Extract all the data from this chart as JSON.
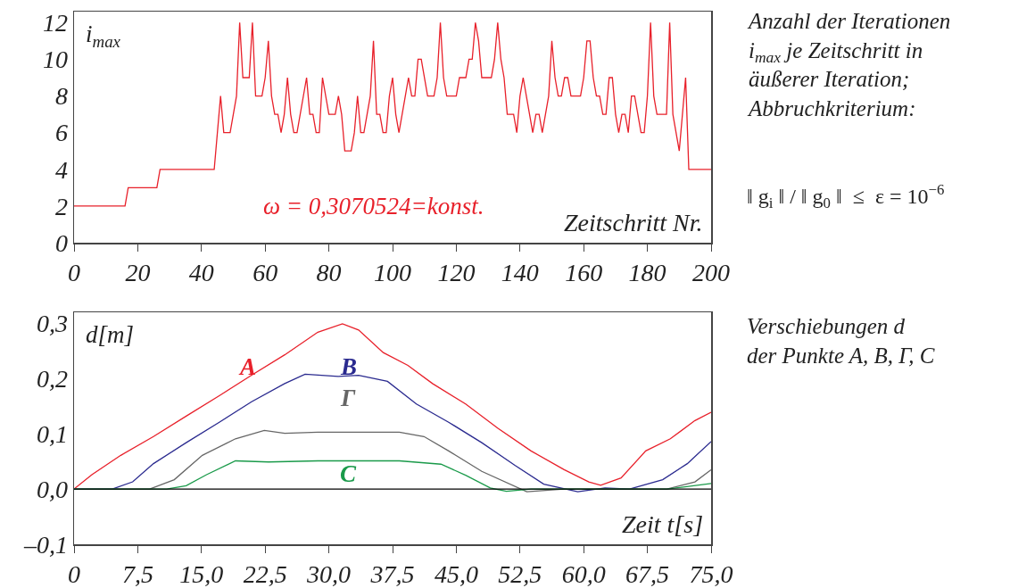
{
  "chart_data": [
    {
      "type": "line",
      "xlabel": "Zeitschritt Nr.",
      "ylabel": "i$_{max}$",
      "color": "#e8202a",
      "grid": false,
      "legend": false,
      "marker": "none",
      "line_style": "solid",
      "x": [
        0,
        16,
        17,
        26,
        27,
        44,
        46,
        47,
        49,
        51,
        52,
        53,
        55,
        56,
        57,
        59,
        60,
        61,
        62,
        63,
        64,
        65,
        66,
        67,
        68,
        69,
        70,
        73,
        74,
        75,
        76,
        77,
        78,
        80,
        82,
        83,
        84,
        85,
        87,
        88,
        89,
        90,
        91,
        92,
        93,
        94,
        95,
        96,
        97,
        98,
        99,
        100,
        101,
        102,
        104,
        105,
        106,
        107,
        108,
        109,
        111,
        113,
        114,
        115,
        116,
        117,
        120,
        121,
        123,
        124,
        125,
        126,
        127,
        128,
        131,
        132,
        133,
        134,
        135,
        136,
        138,
        139,
        140,
        141,
        142,
        143,
        144,
        145,
        146,
        147,
        148,
        149,
        150,
        151,
        152,
        153,
        154,
        155,
        156,
        159,
        160,
        161,
        162,
        163,
        164,
        165,
        166,
        167,
        168,
        169,
        170,
        171,
        172,
        173,
        174,
        175,
        176,
        177,
        178,
        179,
        180,
        181,
        182,
        183,
        186,
        187,
        188,
        190,
        192,
        193,
        200
      ],
      "values": [
        2,
        2,
        3,
        3,
        4,
        4,
        8,
        6,
        6,
        8,
        12,
        9,
        9,
        12,
        8,
        8,
        9,
        11,
        8,
        7,
        7,
        6,
        7,
        9,
        7,
        6,
        6,
        9,
        7,
        7,
        6,
        6,
        9,
        7,
        7,
        8,
        7,
        5,
        5,
        6,
        8,
        6,
        6,
        7,
        8,
        11,
        7,
        7,
        6,
        6,
        8,
        9,
        7,
        6,
        8,
        9,
        8,
        8,
        10,
        10,
        8,
        8,
        9,
        12,
        9,
        8,
        8,
        9,
        9,
        10,
        10,
        12,
        11,
        9,
        9,
        10,
        12,
        10,
        9,
        7,
        7,
        6,
        8,
        9,
        8,
        7,
        6,
        7,
        7,
        6,
        7,
        8,
        11,
        9,
        8,
        8,
        9,
        9,
        8,
        8,
        9,
        11,
        11,
        9,
        8,
        8,
        7,
        7,
        9,
        9,
        7,
        6,
        7,
        7,
        6,
        8,
        8,
        7,
        6,
        6,
        8,
        12,
        8,
        7,
        7,
        12,
        7,
        5,
        9,
        4,
        4
      ],
      "xlim": [
        0,
        200
      ],
      "ylim": [
        0,
        12.6
      ],
      "xticks": [
        0,
        20,
        40,
        60,
        80,
        100,
        120,
        140,
        160,
        180,
        200
      ],
      "yticks": [
        0,
        2,
        4,
        6,
        8,
        10,
        12
      ],
      "annotations": [
        "ω = 0,3070524=konst.",
        "Anzahl der Iterationen\ni$_{max}$ je Zeitschritt in\näußerer Iteration;\nAbbruchkriterium:",
        "‖ g$_{i}$ ‖ / ‖ g$_{0}$ ‖  ≤  ε = 10$^{−6}$"
      ]
    },
    {
      "type": "line",
      "xlabel": "Zeit t[s]",
      "ylabel": "d[m]",
      "grid": false,
      "legend": false,
      "marker": "none",
      "line_style": "solid",
      "series": [
        {
          "name": "A",
          "color": "#e8202a",
          "x": [
            0,
            2.1,
            5.5,
            9.35,
            13.2,
            17.1,
            20.9,
            24.8,
            28.7,
            31.6,
            33.5,
            36.4,
            39.3,
            42.2,
            46.1,
            49.9,
            53.8,
            57.7,
            60.6,
            62.0,
            64.4,
            67.3,
            70.2,
            73.1,
            75
          ],
          "values": [
            0,
            0.026,
            0.061,
            0.095,
            0.132,
            0.169,
            0.206,
            0.243,
            0.284,
            0.299,
            0.288,
            0.247,
            0.224,
            0.191,
            0.154,
            0.11,
            0.069,
            0.035,
            0.013,
            0.007,
            0.02,
            0.069,
            0.091,
            0.124,
            0.139
          ]
        },
        {
          "name": "B",
          "color": "#2a2a8f",
          "x": [
            0,
            4.5,
            6.9,
            9.35,
            13.2,
            17.1,
            20.9,
            24.8,
            27.2,
            31.1,
            33.5,
            36.9,
            40.3,
            44.1,
            48.0,
            51.9,
            55.3,
            59.3,
            62.5,
            65.4,
            69.3,
            72.2,
            75
          ],
          "values": [
            0,
            0,
            0.013,
            0.046,
            0.084,
            0.121,
            0.158,
            0.191,
            0.208,
            0.204,
            0.206,
            0.195,
            0.154,
            0.121,
            0.084,
            0.043,
            0.009,
            -0.005,
            0.002,
            0,
            0.017,
            0.046,
            0.086
          ]
        },
        {
          "name": "Γ",
          "color": "#666666",
          "x": [
            0,
            8.9,
            11.8,
            15.1,
            19.0,
            22.4,
            24.8,
            28.7,
            33.5,
            38.3,
            41.2,
            44.1,
            48.0,
            53.3,
            57.7,
            69.8,
            73.1,
            75
          ],
          "values": [
            0,
            0,
            0.017,
            0.061,
            0.091,
            0.106,
            0.101,
            0.103,
            0.103,
            0.103,
            0.095,
            0.069,
            0.032,
            -0.005,
            0,
            0,
            0.013,
            0.035
          ]
        },
        {
          "name": "C",
          "color": "#1a9a4a",
          "x": [
            0,
            10.9,
            13.2,
            15.6,
            19.0,
            22.9,
            28.7,
            38.3,
            43.2,
            46.1,
            49.0,
            50.9,
            53.8,
            69.8,
            75
          ],
          "values": [
            0,
            0,
            0.006,
            0.026,
            0.051,
            0.049,
            0.051,
            0.051,
            0.045,
            0.025,
            0.002,
            -0.004,
            0,
            0,
            0.01
          ]
        }
      ],
      "xlim": [
        0,
        75
      ],
      "ylim": [
        -0.1,
        0.32
      ],
      "xticks": [
        0,
        {
          "value": 7.5,
          "label": "7,5"
        },
        {
          "value": 15,
          "label": "15,0"
        },
        {
          "value": 22.5,
          "label": "22,5"
        },
        {
          "value": 30,
          "label": "30,0"
        },
        {
          "value": 37.5,
          "label": "37,5"
        },
        {
          "value": 45,
          "label": "45,0"
        },
        {
          "value": 52.5,
          "label": "52,5"
        },
        {
          "value": 60,
          "label": "60,0"
        },
        {
          "value": 67.5,
          "label": "67,5"
        },
        {
          "value": 75,
          "label": "75,0"
        }
      ],
      "yticks": [
        {
          "value": -0.1,
          "label": "–0,1"
        },
        {
          "value": 0,
          "label": "0,0"
        },
        {
          "value": 0.1,
          "label": "0,1"
        },
        {
          "value": 0.2,
          "label": "0,2"
        },
        {
          "value": 0.3,
          "label": "0,3"
        }
      ],
      "ref_lines": [
        {
          "axis": "y",
          "value": 0,
          "color": "#000000"
        }
      ],
      "annotations": [
        "Verschiebungen d\nder Punkte A, B, Γ, C"
      ]
    }
  ]
}
